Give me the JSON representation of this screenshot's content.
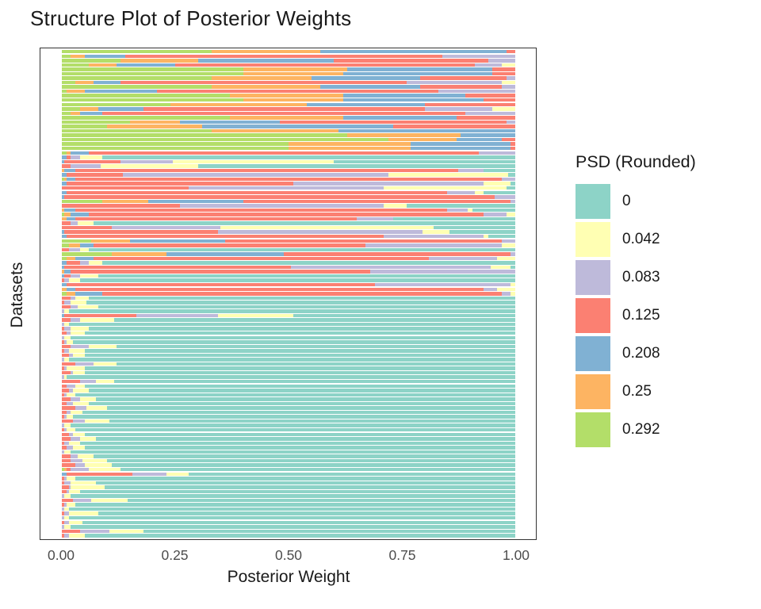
{
  "chart_data": {
    "type": "stacked-bar-horizontal",
    "title": "Structure Plot of Posterior Weights",
    "xlabel": "Posterior Weight",
    "ylabel": "Datasets",
    "xlim": [
      0,
      1
    ],
    "x_ticks": [
      "0.00",
      "0.25",
      "0.50",
      "0.75",
      "1.00"
    ],
    "grid": "off",
    "legend_position": "right",
    "legend": {
      "title": "PSD (Rounded)",
      "entries": [
        {
          "label": "0",
          "color": "#8DD3C7"
        },
        {
          "label": "0.042",
          "color": "#FFFFB3"
        },
        {
          "label": "0.083",
          "color": "#BEBADA"
        },
        {
          "label": "0.125",
          "color": "#FB8072"
        },
        {
          "label": "0.208",
          "color": "#80B1D3"
        },
        {
          "label": "0.25",
          "color": "#FDB462"
        },
        {
          "label": "0.292",
          "color": "#B3DE69"
        }
      ]
    },
    "stack_order_labels": [
      "0.292",
      "0.25",
      "0.208",
      "0.125",
      "0.083",
      "0.042",
      "0"
    ],
    "stack_order_colors": [
      "#B3DE69",
      "#FDB462",
      "#80B1D3",
      "#FB8072",
      "#BEBADA",
      "#FFFFB3",
      "#8DD3C7"
    ],
    "rows_note": "Each row = one dataset (top to bottom); values are posterior weights per PSD level in stack_order, summing to 1",
    "rows": [
      [
        0.33,
        0.24,
        0.41,
        0.02,
        0,
        0,
        0
      ],
      [
        0.02,
        0.03,
        0.09,
        0.7,
        0.16,
        0,
        0
      ],
      [
        0.13,
        0.17,
        0.3,
        0.34,
        0.06,
        0,
        0
      ],
      [
        0.06,
        0.06,
        0.13,
        0.66,
        0.06,
        0.03,
        0
      ],
      [
        0.4,
        0.23,
        0.32,
        0.05,
        0,
        0,
        0
      ],
      [
        0.4,
        0.22,
        0.33,
        0.05,
        0,
        0,
        0
      ],
      [
        0.33,
        0.22,
        0.24,
        0.19,
        0.02,
        0,
        0
      ],
      [
        0.03,
        0.04,
        0.06,
        0.63,
        0.21,
        0.03,
        0
      ],
      [
        0.33,
        0.24,
        0.22,
        0.18,
        0.03,
        0,
        0
      ],
      [
        0.01,
        0.04,
        0.16,
        0.62,
        0.17,
        0,
        0
      ],
      [
        0.37,
        0.25,
        0.27,
        0.11,
        0,
        0,
        0
      ],
      [
        0.4,
        0.22,
        0.31,
        0.07,
        0,
        0,
        0
      ],
      [
        0.24,
        0.3,
        0.26,
        0.2,
        0,
        0,
        0
      ],
      [
        0.04,
        0.04,
        0.1,
        0.62,
        0.15,
        0.05,
        0
      ],
      [
        0.02,
        0.02,
        0.05,
        0.8,
        0.11,
        0,
        0
      ],
      [
        0.37,
        0.25,
        0.25,
        0.13,
        0,
        0,
        0
      ],
      [
        0.15,
        0.11,
        0.22,
        0.5,
        0.02,
        0,
        0
      ],
      [
        0.1,
        0.21,
        0.42,
        0.27,
        0,
        0,
        0
      ],
      [
        0.33,
        0.28,
        0.39,
        0,
        0,
        0,
        0
      ],
      [
        0.63,
        0.25,
        0.12,
        0,
        0,
        0,
        0
      ],
      [
        0.72,
        0.15,
        0.1,
        0.03,
        0,
        0,
        0
      ],
      [
        0.5,
        0.27,
        0.22,
        0.01,
        0,
        0,
        0
      ],
      [
        0.5,
        0.27,
        0.22,
        0.01,
        0,
        0,
        0
      ],
      [
        0.01,
        0.01,
        0.04,
        0.86,
        0.08,
        0,
        0
      ],
      [
        0,
        0,
        0.01,
        0.01,
        0.02,
        0.05,
        0.91
      ],
      [
        0,
        0,
        0.005,
        0.125,
        0.115,
        0.355,
        0.4
      ],
      [
        0,
        0,
        0,
        0.02,
        0.065,
        0.215,
        0.7
      ],
      [
        0,
        0.005,
        0.025,
        0.845,
        0.055,
        0,
        0.07
      ],
      [
        0,
        0,
        0.01,
        0.125,
        0.585,
        0.265,
        0.015
      ],
      [
        0.005,
        0.005,
        0.02,
        0.94,
        0.03,
        0,
        0
      ],
      [
        0,
        0,
        0.01,
        0.5,
        0.42,
        0.06,
        0.01
      ],
      [
        0,
        0,
        0,
        0.28,
        0.43,
        0.27,
        0.02
      ],
      [
        0,
        0,
        0.01,
        0.84,
        0.06,
        0.02,
        0.07
      ],
      [
        0,
        0,
        0.005,
        0.95,
        0.045,
        0,
        0
      ],
      [
        0.09,
        0.1,
        0.21,
        0.59,
        0.01,
        0,
        0
      ],
      [
        0,
        0,
        0,
        0.26,
        0.45,
        0.05,
        0.24
      ],
      [
        0,
        0.005,
        0.025,
        0.82,
        0.045,
        0.01,
        0.095
      ],
      [
        0.005,
        0.015,
        0.04,
        0.87,
        0.05,
        0.02,
        0
      ],
      [
        0,
        0.01,
        0.02,
        0.62,
        0.08,
        0,
        0.27
      ],
      [
        0,
        0,
        0,
        0.02,
        0.015,
        0.035,
        0.93
      ],
      [
        0,
        0,
        0,
        0.11,
        0.24,
        0.47,
        0.18
      ],
      [
        0,
        0,
        0.005,
        0.34,
        0.45,
        0.06,
        0.145
      ],
      [
        0,
        0,
        0.01,
        0.7,
        0.22,
        0.01,
        0.06
      ],
      [
        0.065,
        0.085,
        0.21,
        0.61,
        0.03,
        0,
        0
      ],
      [
        0.015,
        0.025,
        0.03,
        0.6,
        0.3,
        0.03,
        0
      ],
      [
        0,
        0,
        0,
        0.015,
        0.025,
        0.02,
        0.94
      ],
      [
        0.11,
        0.12,
        0.26,
        0.5,
        0.01,
        0,
        0
      ],
      [
        0.01,
        0.02,
        0.04,
        0.74,
        0.15,
        0.04,
        0
      ],
      [
        0,
        0,
        0.01,
        0.03,
        0.02,
        0.03,
        0.91
      ],
      [
        0,
        0,
        0.005,
        0.5,
        0.44,
        0.045,
        0.01
      ],
      [
        0,
        0.005,
        0.015,
        0.66,
        0.32,
        0,
        0
      ],
      [
        0,
        0,
        0.005,
        0.015,
        0.02,
        0.04,
        0.92
      ],
      [
        0,
        0,
        0,
        0.005,
        0.01,
        0.025,
        0.96
      ],
      [
        0,
        0,
        0.01,
        0.68,
        0.3,
        0.01,
        0
      ],
      [
        0,
        0.01,
        0.02,
        0.9,
        0.03,
        0.04,
        0
      ],
      [
        0.01,
        0.02,
        0.06,
        0.88,
        0.02,
        0.01,
        0
      ],
      [
        0,
        0,
        0,
        0.02,
        0.01,
        0.03,
        0.94
      ],
      [
        0,
        0,
        0,
        0.005,
        0.015,
        0.035,
        0.945
      ],
      [
        0,
        0,
        0,
        0.02,
        0.015,
        0.045,
        0.92
      ],
      [
        0,
        0,
        0,
        0,
        0.005,
        0.01,
        0.985
      ],
      [
        0,
        0,
        0.005,
        0.16,
        0.18,
        0.165,
        0.49
      ],
      [
        0,
        0,
        0,
        0.02,
        0.02,
        0.075,
        0.885
      ],
      [
        0,
        0,
        0,
        0,
        0.005,
        0.01,
        0.985
      ],
      [
        0,
        0,
        0,
        0.005,
        0.015,
        0.04,
        0.94
      ],
      [
        0,
        0,
        0,
        0.01,
        0.01,
        0.03,
        0.95
      ],
      [
        0,
        0,
        0,
        0,
        0.005,
        0.015,
        0.98
      ],
      [
        0,
        0,
        0,
        0.005,
        0.005,
        0.015,
        0.975
      ],
      [
        0,
        0,
        0,
        0.02,
        0.04,
        0.06,
        0.88
      ],
      [
        0,
        0,
        0,
        0.005,
        0.01,
        0.035,
        0.95
      ],
      [
        0,
        0,
        0,
        0.015,
        0.01,
        0.025,
        0.95
      ],
      [
        0,
        0,
        0,
        0,
        0.005,
        0.01,
        0.985
      ],
      [
        0,
        0,
        0,
        0.03,
        0.04,
        0.05,
        0.88
      ],
      [
        0,
        0,
        0,
        0.005,
        0.005,
        0.04,
        0.95
      ],
      [
        0,
        0,
        0,
        0.02,
        0.005,
        0.025,
        0.95
      ],
      [
        0,
        0,
        0,
        0,
        0.005,
        0.005,
        0.99
      ],
      [
        0,
        0,
        0,
        0.04,
        0.035,
        0.04,
        0.885
      ],
      [
        0,
        0,
        0,
        0.01,
        0.02,
        0.02,
        0.95
      ],
      [
        0,
        0,
        0,
        0.015,
        0.01,
        0.035,
        0.94
      ],
      [
        0,
        0,
        0,
        0.005,
        0.005,
        0.02,
        0.97
      ],
      [
        0,
        0,
        0,
        0.02,
        0.02,
        0.035,
        0.925
      ],
      [
        0,
        0,
        0,
        0.01,
        0.015,
        0.035,
        0.94
      ],
      [
        0,
        0,
        0,
        0.03,
        0.025,
        0.045,
        0.9
      ],
      [
        0,
        0,
        0,
        0.01,
        0.01,
        0.025,
        0.955
      ],
      [
        0,
        0,
        0,
        0.005,
        0.005,
        0.015,
        0.975
      ],
      [
        0,
        0,
        0,
        0.025,
        0.025,
        0.055,
        0.895
      ],
      [
        0,
        0,
        0,
        0,
        0.005,
        0.015,
        0.98
      ],
      [
        0,
        0,
        0,
        0.005,
        0.005,
        0.02,
        0.97
      ],
      [
        0,
        0,
        0,
        0.015,
        0.01,
        0.025,
        0.95
      ],
      [
        0,
        0,
        0,
        0.02,
        0.02,
        0.035,
        0.925
      ],
      [
        0,
        0,
        0,
        0.005,
        0.01,
        0.025,
        0.96
      ],
      [
        0,
        0,
        0,
        0.01,
        0.015,
        0.025,
        0.95
      ],
      [
        0,
        0,
        0,
        0,
        0.005,
        0.015,
        0.98
      ],
      [
        0,
        0,
        0,
        0.02,
        0.015,
        0.035,
        0.93
      ],
      [
        0,
        0,
        0,
        0.02,
        0.025,
        0.055,
        0.9
      ],
      [
        0,
        0,
        0,
        0.03,
        0.02,
        0.06,
        0.89
      ],
      [
        0.005,
        0.005,
        0,
        0.01,
        0.04,
        0.07,
        0.87
      ],
      [
        0,
        0,
        0.01,
        0.145,
        0.075,
        0.05,
        0.72
      ],
      [
        0,
        0,
        0,
        0.005,
        0.005,
        0.02,
        0.97
      ],
      [
        0,
        0,
        0,
        0.005,
        0.015,
        0.055,
        0.925
      ],
      [
        0,
        0,
        0,
        0.015,
        0.005,
        0.075,
        0.905
      ],
      [
        0,
        0,
        0,
        0.01,
        0.005,
        0.025,
        0.96
      ],
      [
        0,
        0,
        0,
        0,
        0.005,
        0.015,
        0.98
      ],
      [
        0,
        0,
        0,
        0.025,
        0.04,
        0.08,
        0.855
      ],
      [
        0,
        0,
        0,
        0.005,
        0.005,
        0.02,
        0.97
      ],
      [
        0,
        0,
        0,
        0,
        0.005,
        0.01,
        0.985
      ],
      [
        0,
        0,
        0,
        0.005,
        0.01,
        0.065,
        0.92
      ],
      [
        0,
        0,
        0,
        0,
        0.005,
        0.01,
        0.985
      ],
      [
        0,
        0,
        0,
        0.005,
        0.01,
        0.03,
        0.955
      ],
      [
        0,
        0,
        0,
        0,
        0.005,
        0.015,
        0.98
      ],
      [
        0,
        0,
        0,
        0.04,
        0.065,
        0.075,
        0.82
      ],
      [
        0,
        0,
        0,
        0.005,
        0.01,
        0.035,
        0.95
      ]
    ]
  }
}
